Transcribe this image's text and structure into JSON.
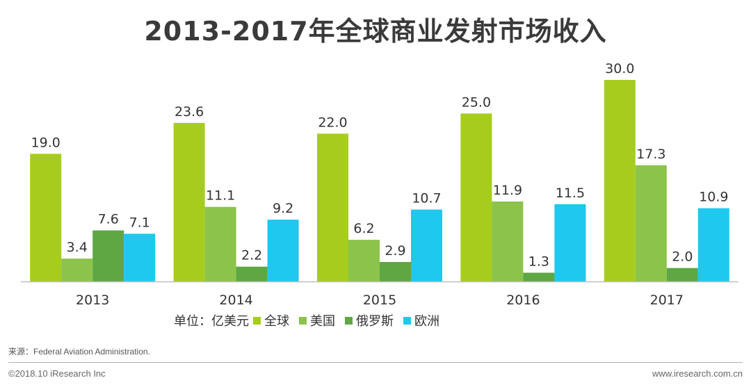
{
  "chart_data": {
    "type": "bar",
    "title": "2013-2017年全球商业发射市场收入",
    "unit_label": "单位：亿美元",
    "categories": [
      "2013",
      "2014",
      "2015",
      "2016",
      "2017"
    ],
    "series": [
      {
        "name": "全球",
        "color": "#a6cd1d",
        "values": [
          19.0,
          23.6,
          22.0,
          25.0,
          30.0
        ],
        "labels": [
          "19.0",
          "23.6",
          "22.0",
          "25.0",
          "30.0"
        ]
      },
      {
        "name": "美国",
        "color": "#8cc34a",
        "values": [
          3.4,
          11.1,
          6.2,
          11.9,
          17.3
        ],
        "labels": [
          "3.4",
          "11.1",
          "6.2",
          "11.9",
          "17.3"
        ]
      },
      {
        "name": "俄罗斯",
        "color": "#5ea742",
        "values": [
          7.6,
          2.2,
          2.9,
          1.3,
          2.0
        ],
        "labels": [
          "7.6",
          "2.2",
          "2.9",
          "1.3",
          "2.0"
        ]
      },
      {
        "name": "欧洲",
        "color": "#1ec8ee",
        "values": [
          7.1,
          9.2,
          10.7,
          11.5,
          10.9
        ],
        "labels": [
          "7.1",
          "9.2",
          "10.7",
          "11.5",
          "10.9"
        ]
      }
    ],
    "ylim": [
      0,
      30
    ],
    "grid": false,
    "legend_position": "bottom"
  },
  "footer": {
    "source": "来源：Federal Aviation Administration.",
    "copyright": "©2018.10 iResearch Inc",
    "website": "www.iresearch.com.cn"
  }
}
